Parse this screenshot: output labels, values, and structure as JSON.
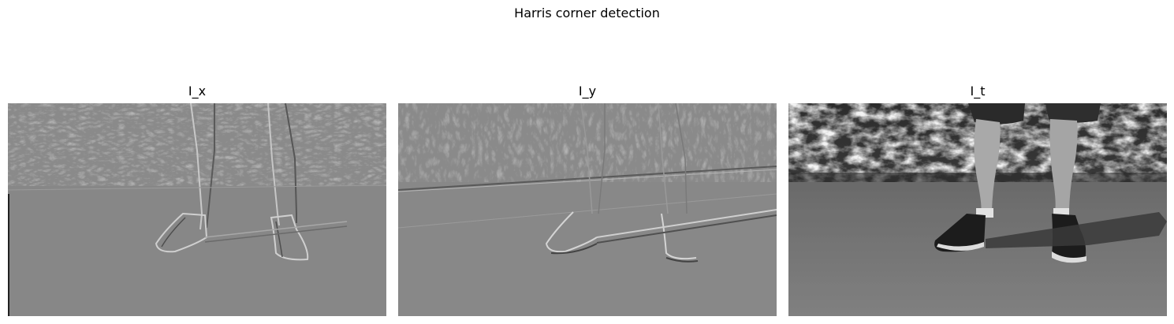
{
  "figure": {
    "title": "Harris corner detection",
    "panels": [
      {
        "title": "I_x",
        "kind": "gradient-x"
      },
      {
        "title": "I_y",
        "kind": "gradient-y"
      },
      {
        "title": "I_t",
        "kind": "grayscale-photo"
      }
    ]
  }
}
